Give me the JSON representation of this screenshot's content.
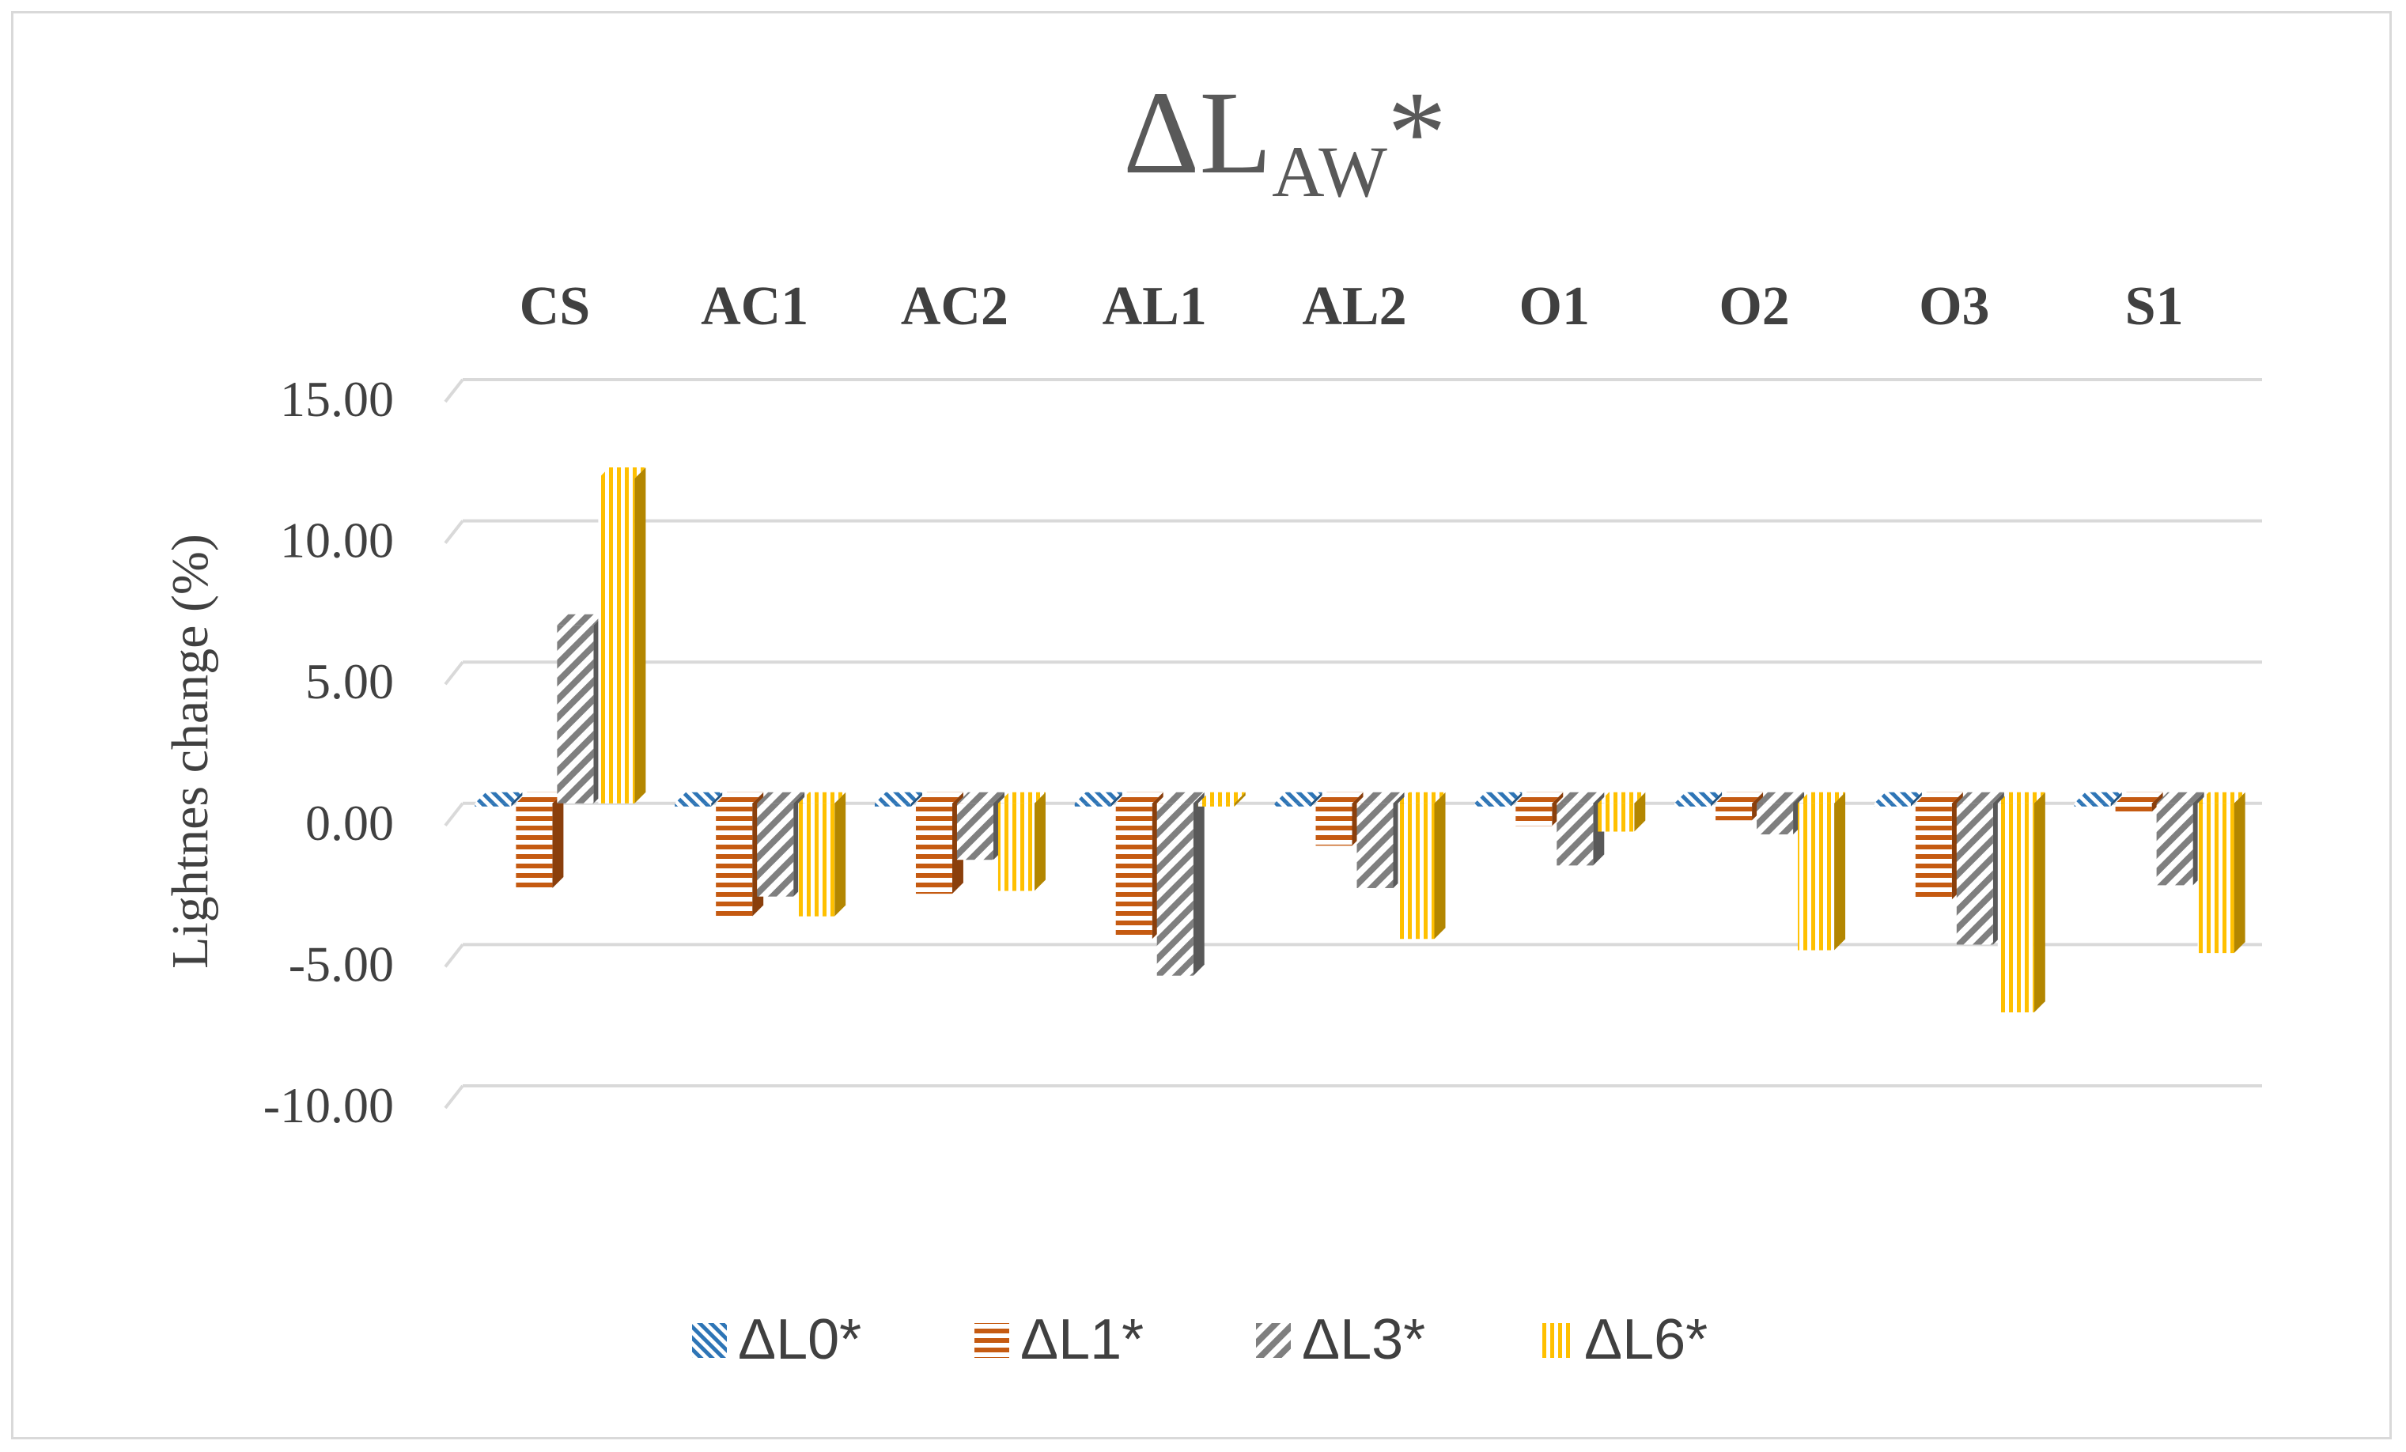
{
  "chart_data": {
    "type": "bar",
    "title": "ΔL",
    "title_subscript": "AW",
    "title_suffix": "*",
    "ylabel": "Lightnes change (%)",
    "xlabel": "",
    "categories": [
      "CS",
      "AC1",
      "AC2",
      "AL1",
      "AL2",
      "O1",
      "O2",
      "O3",
      "S1"
    ],
    "ylim": [
      -10,
      15
    ],
    "yticks": [
      15,
      10,
      5,
      0,
      -5,
      -10
    ],
    "ytick_labels": [
      "15.00",
      "10.00",
      "5.00",
      "0.00",
      "-5.00",
      "-10.00"
    ],
    "category_axis_position": "top",
    "grid": true,
    "legend_position": "bottom",
    "series": [
      {
        "name": "ΔL0*",
        "values": [
          0,
          0,
          0,
          0,
          0,
          0,
          0,
          0,
          0
        ],
        "color": "#2e75b6",
        "pattern": "diagonal-stripes"
      },
      {
        "name": "ΔL1*",
        "values": [
          -3.0,
          -4.0,
          -3.2,
          -4.8,
          -1.5,
          -0.8,
          -0.6,
          -3.4,
          -0.3
        ],
        "color": "#c55a11",
        "pattern": "horizontal-stripes"
      },
      {
        "name": "ΔL3*",
        "values": [
          6.3,
          -3.3,
          -2.0,
          -6.1,
          -3.0,
          -2.2,
          -1.1,
          -5.0,
          -2.9
        ],
        "color": "#7f7f7f",
        "pattern": "wide-diagonal-stripes"
      },
      {
        "name": "ΔL6*",
        "values": [
          11.5,
          -4.0,
          -3.1,
          0,
          -4.8,
          -1.0,
          -5.2,
          -7.4,
          -5.3
        ],
        "color": "#ffc000",
        "pattern": "vertical-stripes"
      }
    ]
  }
}
